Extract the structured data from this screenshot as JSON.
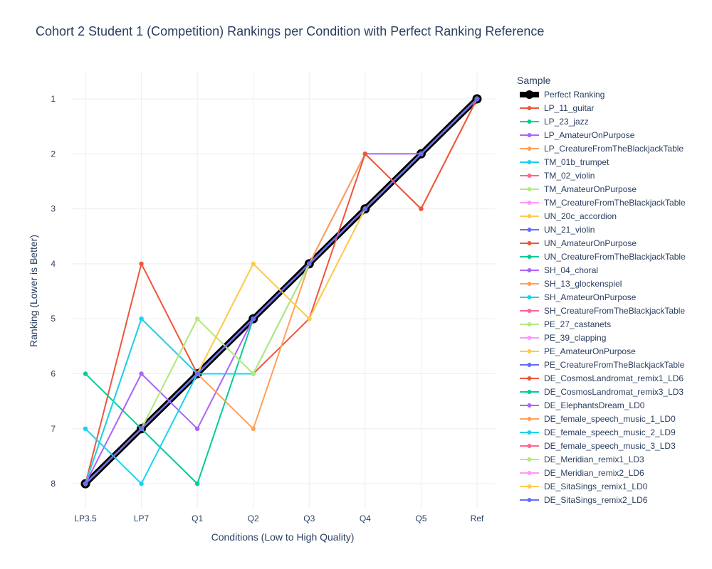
{
  "chart_data": {
    "type": "line",
    "title": "Cohort 2 Student 1 (Competition) Rankings per Condition with Perfect Ranking Reference",
    "xlabel": "Conditions (Low to High Quality)",
    "ylabel": "Ranking (Lower is Better)",
    "legend_title": "Sample",
    "legend_position": "right",
    "grid": true,
    "y_reversed": true,
    "ylim": [
      1,
      8
    ],
    "yticks": [
      "1",
      "2",
      "3",
      "4",
      "5",
      "6",
      "7",
      "8"
    ],
    "categories": [
      "LP3.5",
      "LP7",
      "Q1",
      "Q2",
      "Q3",
      "Q4",
      "Q5",
      "Ref"
    ],
    "series": [
      {
        "name": "Perfect Ranking",
        "color": "#000000",
        "values": [
          8,
          7,
          6,
          5,
          4,
          3,
          2,
          1
        ],
        "reference": true
      },
      {
        "name": "LP_11_guitar",
        "color": "#EF553B",
        "values": [
          8,
          4,
          6,
          5,
          4,
          3,
          2,
          1
        ]
      },
      {
        "name": "LP_23_jazz",
        "color": "#00CC96",
        "values": [
          6,
          7,
          8,
          5,
          4,
          3,
          2,
          1
        ]
      },
      {
        "name": "LP_AmateurOnPurpose",
        "color": "#AB63FA",
        "values": [
          8,
          7,
          6,
          5,
          4,
          3,
          2,
          1
        ]
      },
      {
        "name": "LP_CreatureFromTheBlackjackTable",
        "color": "#FFA15A",
        "values": [
          8,
          5,
          6,
          5,
          4,
          3,
          2,
          1
        ]
      },
      {
        "name": "TM_01b_trumpet",
        "color": "#19D3F3",
        "values": [
          8,
          5,
          6,
          5,
          4,
          3,
          2,
          1
        ]
      },
      {
        "name": "TM_02_violin",
        "color": "#FF6692",
        "values": [
          8,
          7,
          6,
          5,
          4,
          3,
          2,
          1
        ]
      },
      {
        "name": "TM_AmateurOnPurpose",
        "color": "#B6E880",
        "values": [
          8,
          7,
          6,
          5,
          4,
          3,
          2,
          1
        ]
      },
      {
        "name": "TM_CreatureFromTheBlackjackTable",
        "color": "#FF97FF",
        "values": [
          8,
          7,
          6,
          5,
          4,
          3,
          2,
          1
        ]
      },
      {
        "name": "UN_20c_accordion",
        "color": "#FECB52",
        "values": [
          8,
          7,
          6,
          5,
          4,
          3,
          2,
          1
        ]
      },
      {
        "name": "UN_21_violin",
        "color": "#636EFA",
        "values": [
          8,
          7,
          6,
          5,
          4,
          3,
          2,
          1
        ]
      },
      {
        "name": "UN_AmateurOnPurpose",
        "color": "#EF553B",
        "values": [
          8,
          7,
          6,
          5,
          4,
          3,
          2,
          1
        ]
      },
      {
        "name": "UN_CreatureFromTheBlackjackTable",
        "color": "#00CC96",
        "values": [
          8,
          7,
          6,
          5,
          4,
          3,
          2,
          1
        ]
      },
      {
        "name": "SH_04_choral",
        "color": "#AB63FA",
        "values": [
          8,
          7,
          6,
          5,
          4,
          2,
          2,
          1
        ]
      },
      {
        "name": "SH_13_glockenspiel",
        "color": "#FFA15A",
        "values": [
          8,
          7,
          6,
          5,
          4,
          2,
          3,
          1
        ]
      },
      {
        "name": "SH_AmateurOnPurpose",
        "color": "#19D3F3",
        "values": [
          8,
          7,
          6,
          5,
          4,
          3,
          2,
          1
        ]
      },
      {
        "name": "SH_CreatureFromTheBlackjackTable",
        "color": "#FF6692",
        "values": [
          8,
          7,
          6,
          5,
          4,
          3,
          2,
          1
        ]
      },
      {
        "name": "PE_27_castanets",
        "color": "#B6E880",
        "values": [
          8,
          7,
          5,
          6,
          4,
          3,
          2,
          1
        ]
      },
      {
        "name": "PE_39_clapping",
        "color": "#FF97FF",
        "values": [
          8,
          7,
          6,
          5,
          4,
          3,
          2,
          1
        ]
      },
      {
        "name": "PE_AmateurOnPurpose",
        "color": "#FECB52",
        "values": [
          8,
          7,
          6,
          4,
          5,
          3,
          2,
          1
        ]
      },
      {
        "name": "PE_CreatureFromTheBlackjackTable",
        "color": "#636EFA",
        "values": [
          8,
          7,
          6,
          5,
          4,
          3,
          2,
          1
        ]
      },
      {
        "name": "DE_CosmosLandromat_remix1_LD6",
        "color": "#EF553B",
        "values": [
          8,
          7,
          6,
          6,
          5,
          2,
          3,
          1
        ]
      },
      {
        "name": "DE_CosmosLandromat_remix3_LD3",
        "color": "#00CC96",
        "values": [
          8,
          7,
          6,
          5,
          4,
          3,
          2,
          1
        ]
      },
      {
        "name": "DE_ElephantsDream_LD0",
        "color": "#AB63FA",
        "values": [
          8,
          6,
          7,
          5,
          4,
          3,
          2,
          1
        ]
      },
      {
        "name": "DE_female_speech_music_1_LD0",
        "color": "#FFA15A",
        "values": [
          8,
          7,
          6,
          7,
          4,
          3,
          2,
          1
        ]
      },
      {
        "name": "DE_female_speech_music_2_LD9",
        "color": "#19D3F3",
        "values": [
          7,
          8,
          6,
          6,
          4,
          3,
          2,
          1
        ]
      },
      {
        "name": "DE_female_speech_music_3_LD3",
        "color": "#FF6692",
        "values": [
          8,
          7,
          6,
          5,
          4,
          3,
          2,
          1
        ]
      },
      {
        "name": "DE_Meridian_remix1_LD3",
        "color": "#B6E880",
        "values": [
          8,
          7,
          5,
          6,
          4,
          3,
          2,
          1
        ]
      },
      {
        "name": "DE_Meridian_remix2_LD6",
        "color": "#FF97FF",
        "values": [
          8,
          7,
          6,
          5,
          4,
          3,
          2,
          1
        ]
      },
      {
        "name": "DE_SitaSings_remix1_LD0",
        "color": "#FECB52",
        "values": [
          8,
          7,
          6,
          4,
          5,
          3,
          2,
          1
        ]
      },
      {
        "name": "DE_SitaSings_remix2_LD6",
        "color": "#636EFA",
        "values": [
          8,
          7,
          6,
          5,
          4,
          3,
          2,
          1
        ]
      }
    ]
  }
}
